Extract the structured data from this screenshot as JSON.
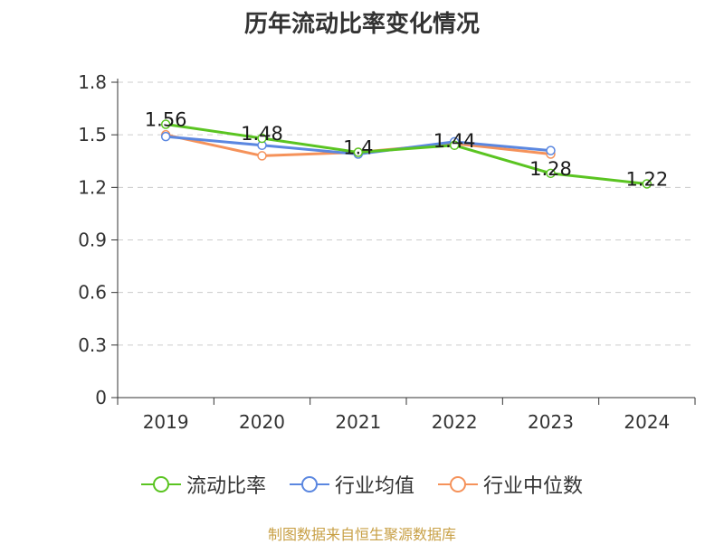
{
  "chart_data": {
    "type": "line",
    "title": "历年流动比率变化情况",
    "categories": [
      "2019",
      "2020",
      "2021",
      "2022",
      "2023",
      "2024"
    ],
    "ylim": [
      0,
      1.8
    ],
    "yticks": [
      "0",
      "0.3",
      "0.6",
      "0.9",
      "1.2",
      "1.5",
      "1.8"
    ],
    "grid": true,
    "legend_position": "bottom",
    "series": [
      {
        "name": "流动比率",
        "color": "#5ac421",
        "values": [
          1.56,
          1.48,
          1.4,
          1.44,
          1.28,
          1.22
        ],
        "labels": [
          "1.56",
          "1.48",
          "1.4",
          "1.44",
          "1.28",
          "1.22"
        ]
      },
      {
        "name": "行业均值",
        "color": "#5b87e0",
        "values": [
          1.49,
          1.44,
          1.39,
          1.46,
          1.41,
          null
        ]
      },
      {
        "name": "行业中位数",
        "color": "#f5925a",
        "values": [
          1.5,
          1.38,
          1.4,
          1.45,
          1.39,
          null
        ]
      }
    ],
    "source": "制图数据来自恒生聚源数据库"
  }
}
